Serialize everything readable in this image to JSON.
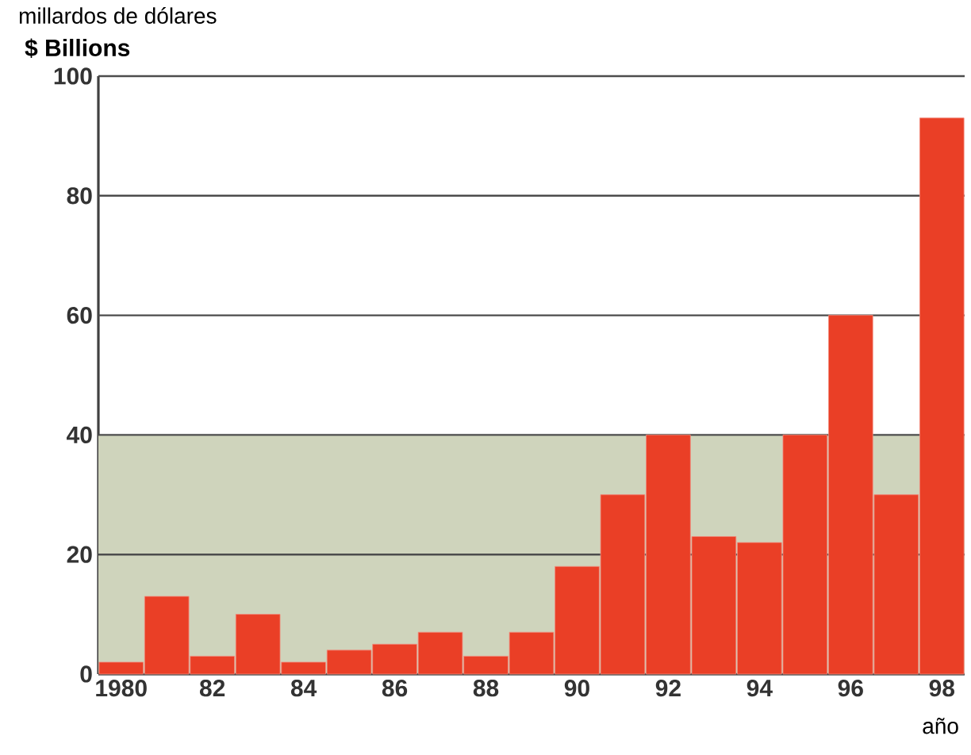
{
  "chart_data": {
    "type": "bar",
    "title": "millardos de dólares",
    "ylabel": "$ Billions",
    "xlabel": "año",
    "categories": [
      "1980",
      null,
      "82",
      null,
      "84",
      null,
      "86",
      null,
      "88",
      null,
      "90",
      null,
      "92",
      null,
      "94",
      null,
      "96",
      null,
      "98"
    ],
    "values": [
      2,
      13,
      3,
      10,
      2,
      4,
      5,
      7,
      3,
      7,
      18,
      30,
      40,
      23,
      22,
      40,
      60,
      30,
      93
    ],
    "color": "#ea3f26",
    "ylim": [
      0,
      100
    ],
    "yticks": [
      0,
      20,
      40,
      60,
      80,
      100
    ],
    "grid": "y",
    "bands": [
      {
        "axis": "y",
        "from": 0,
        "to": 40,
        "label": null,
        "color": "#cfd4bc"
      }
    ]
  }
}
